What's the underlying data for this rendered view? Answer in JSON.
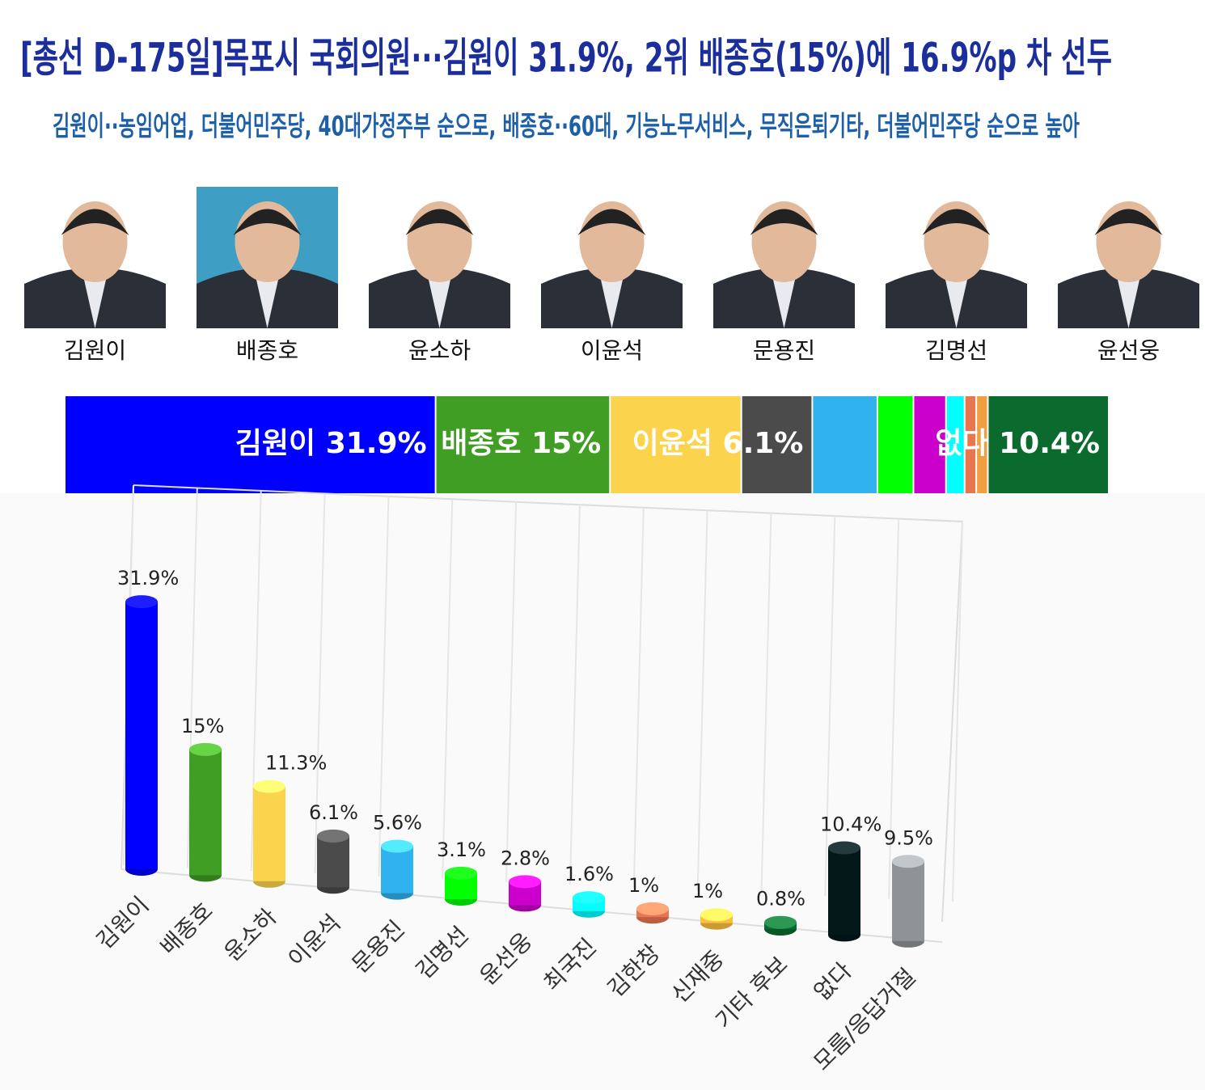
{
  "header": {
    "title": "[총선 D-175일]목포시 국회의원···김원이 31.9%, 2위 배종호(15%)에 16.9%p 차 선두",
    "subtitle": "김원이··농임어업, 더불어민주당, 40대가정주부 순으로, 배종호··60대, 기능노무서비스, 무직은퇴기타, 더불어민주당 순으로 높아"
  },
  "candidates": [
    "김원이",
    "배종호",
    "윤소하",
    "이윤석",
    "문용진",
    "김명선",
    "윤선웅"
  ],
  "chart_data": [
    {
      "type": "stacked_bar",
      "values": [
        31.9,
        15,
        11.3,
        6.1,
        5.6,
        3.1,
        2.8,
        1.6,
        1,
        1,
        10.4
      ],
      "value_labels": [
        "김원이 31.9%",
        "배종호 15%",
        null,
        "이윤석 6.1%",
        null,
        null,
        null,
        null,
        null,
        null,
        "없다 10.4%"
      ],
      "colors": [
        "#0000ff",
        "#3f9e23",
        "#fcd34d",
        "#4b4b4b",
        "#2fb2ee",
        "#00ff00",
        "#cc00cc",
        "#00ffff",
        "#e8774f",
        "#f0a040",
        "#0b6b2f"
      ]
    },
    {
      "type": "bar",
      "categories": [
        "김원이",
        "배종호",
        "윤소하",
        "이윤석",
        "문용진",
        "김명선",
        "윤선웅",
        "최국진",
        "김한창",
        "신재중",
        "기타 후보",
        "없다",
        "모름/응답거절"
      ],
      "values": [
        31.9,
        15,
        11.3,
        6.1,
        5.6,
        3.1,
        2.8,
        1.6,
        1,
        1,
        0.8,
        10.4,
        9.5
      ],
      "value_labels": [
        "31.9%",
        "15%",
        "11.3%",
        "6.1%",
        "5.6%",
        "3.1%",
        "2.8%",
        "1.6%",
        "1%",
        "1%",
        "0.8%",
        "10.4%",
        "9.5%"
      ],
      "colors": [
        "#0000ff",
        "#3f9e23",
        "#fcd34d",
        "#4b4b4b",
        "#2fb2ee",
        "#00ff00",
        "#cc00cc",
        "#00ffff",
        "#e8774f",
        "#fcc040",
        "#0b6b2f",
        "#04181a",
        "#8e9396"
      ],
      "ylim": [
        0,
        35
      ]
    }
  ]
}
